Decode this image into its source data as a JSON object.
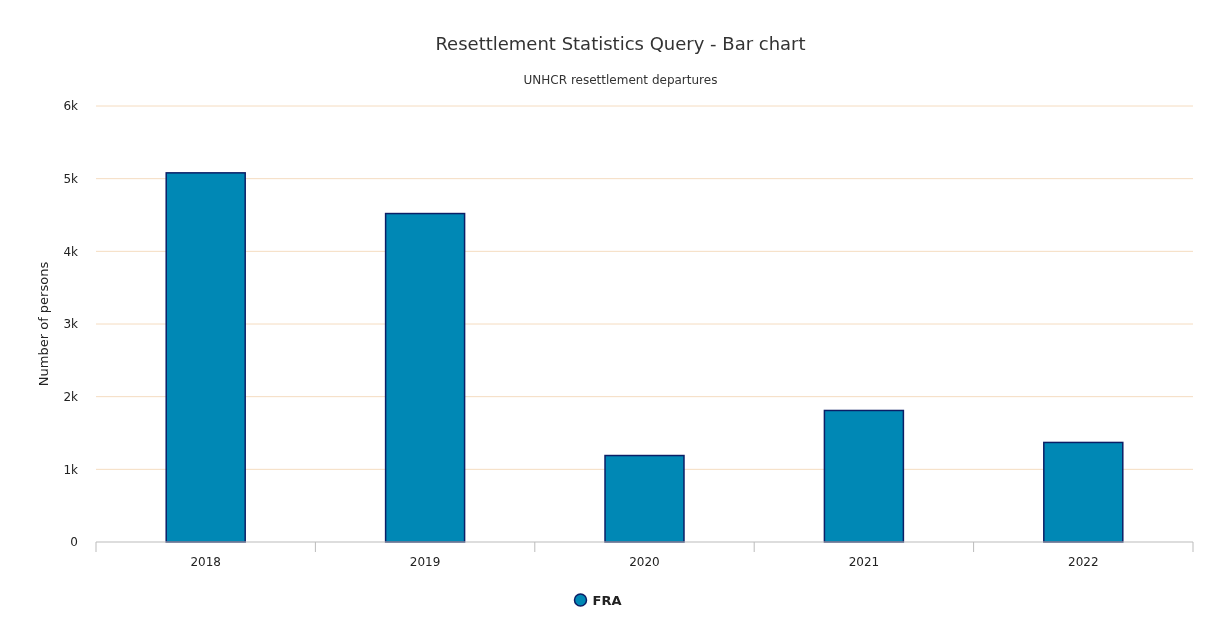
{
  "chart_data": {
    "type": "bar",
    "title": "Resettlement Statistics Query - Bar chart",
    "subtitle": "UNHCR resettlement departures",
    "ylabel": "Number of persons",
    "categories": [
      "2018",
      "2019",
      "2020",
      "2021",
      "2022"
    ],
    "series": [
      {
        "name": "FRA",
        "color": "#0088b5",
        "values": [
          5080,
          4520,
          1190,
          1810,
          1370
        ]
      }
    ],
    "ylim": [
      0,
      6000
    ],
    "yticks": [
      0,
      {
        "value": 1000,
        "label": "1k"
      },
      {
        "value": 2000,
        "label": "2k"
      },
      {
        "value": 3000,
        "label": "3k"
      },
      {
        "value": 4000,
        "label": "4k"
      },
      {
        "value": 5000,
        "label": "5k"
      },
      {
        "value": 6000,
        "label": "6k"
      }
    ],
    "grid": "y",
    "legend": "bottom"
  }
}
